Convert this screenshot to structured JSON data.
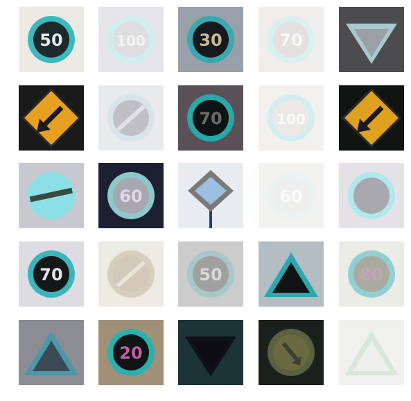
{
  "grid": {
    "rows": 5,
    "cols": 5,
    "tiles": [
      {
        "shape": "circle-speed",
        "bg": "#eceae4",
        "ring": "#3cb8c0",
        "face": "#1c2a2c",
        "text": "50",
        "text_color": "#e8e8e8"
      },
      {
        "shape": "circle-speed",
        "bg": "#e6e6ea",
        "ring": "#cfeef0",
        "face": "#dedde0",
        "text": "100",
        "text_color": "#f4f4f4"
      },
      {
        "shape": "circle-speed",
        "bg": "#9aa0aa",
        "ring": "#3aa8b0",
        "face": "#161a1c",
        "text": "30",
        "text_color": "#c8b89a"
      },
      {
        "shape": "circle-speed",
        "bg": "#f0eeec",
        "ring": "#d8f0f0",
        "face": "#e4e0e0",
        "text": "70",
        "text_color": "#f8f8f8"
      },
      {
        "shape": "triangle-down",
        "bg": "#4c4c4e",
        "ring": "#a8c8cc",
        "face": "#9aa0a6",
        "text": "",
        "text_color": ""
      },
      {
        "shape": "diamond-arrow",
        "bg": "#1a1a1a",
        "ring": "#222222",
        "face": "#e8a020",
        "text": "",
        "text_color": ""
      },
      {
        "shape": "circle-end",
        "bg": "#e8eaec",
        "ring": "#d8e4e8",
        "face": "#c0c0c4",
        "text": "",
        "text_color": ""
      },
      {
        "shape": "circle-speed",
        "bg": "#5a5058",
        "ring": "#28a8a8",
        "face": "#0e1414",
        "text": "70",
        "text_color": "#6a6a6a"
      },
      {
        "shape": "circle-speed",
        "bg": "#f2f0ee",
        "ring": "#d4eef0",
        "face": "#ece8e6",
        "text": "100",
        "text_color": "#fafafa"
      },
      {
        "shape": "diamond-arrow",
        "bg": "#121414",
        "ring": "#1a1a1a",
        "face": "#e0a020",
        "text": "",
        "text_color": ""
      },
      {
        "shape": "circle-noparking",
        "bg": "#c8c8d0",
        "ring": "#8ae0e6",
        "face": "#8ae0e6",
        "text": "",
        "text_color": ""
      },
      {
        "shape": "circle-speed",
        "bg": "#1c2030",
        "ring": "#8cc8cc",
        "face": "#a8a8b0",
        "text": "60",
        "text_color": "#e0d8e8"
      },
      {
        "shape": "diamond-priority",
        "bg": "#e8ecf0",
        "ring": "#7a7a7a",
        "face": "#9ec0e0",
        "text": "",
        "text_color": ""
      },
      {
        "shape": "circle-speed",
        "bg": "#f2f2f0",
        "ring": "#ecf2f2",
        "face": "#eeeeec",
        "text": "60",
        "text_color": "#fafafa"
      },
      {
        "shape": "circle-plain",
        "bg": "#e4e2e6",
        "ring": "#b0e8ec",
        "face": "#a8a8ae",
        "text": "",
        "text_color": ""
      },
      {
        "shape": "circle-speed",
        "bg": "#dcdce2",
        "ring": "#3cb4bc",
        "face": "#141818",
        "text": "70",
        "text_color": "#e4e4e4"
      },
      {
        "shape": "circle-end",
        "bg": "#eeeae4",
        "ring": "#d8cebe",
        "face": "#d4c8b8",
        "text": "",
        "text_color": ""
      },
      {
        "shape": "circle-speed",
        "bg": "#cccccc",
        "ring": "#a8c8c8",
        "face": "#a0a0a0",
        "text": "50",
        "text_color": "#d8d8d8"
      },
      {
        "shape": "triangle-up",
        "bg": "#b4bcc4",
        "ring": "#2aa8b0",
        "face": "#101414",
        "text": "",
        "text_color": ""
      },
      {
        "shape": "circle-speed",
        "bg": "#ecece6",
        "ring": "#90d0d4",
        "face": "#a8aca0",
        "text": "80",
        "text_color": "#c8a0b8"
      },
      {
        "shape": "triangle-up",
        "bg": "#8c8c94",
        "ring": "#4a98a8",
        "face": "#3c4a58",
        "text": "",
        "text_color": ""
      },
      {
        "shape": "circle-speed",
        "bg": "#a09078",
        "ring": "#2ab0b0",
        "face": "#101414",
        "text": "20",
        "text_color": "#c060a0"
      },
      {
        "shape": "triangle-down",
        "bg": "#1c3438",
        "ring": "#101018",
        "face": "#0c0c14",
        "text": "",
        "text_color": ""
      },
      {
        "shape": "circle-arrow",
        "bg": "#1a201c",
        "ring": "#5a6040",
        "face": "#6a6a40",
        "text": "",
        "text_color": ""
      },
      {
        "shape": "triangle-up",
        "bg": "#f0f0ee",
        "ring": "#d8e8d8",
        "face": "#eef0ee",
        "text": "",
        "text_color": ""
      }
    ]
  }
}
